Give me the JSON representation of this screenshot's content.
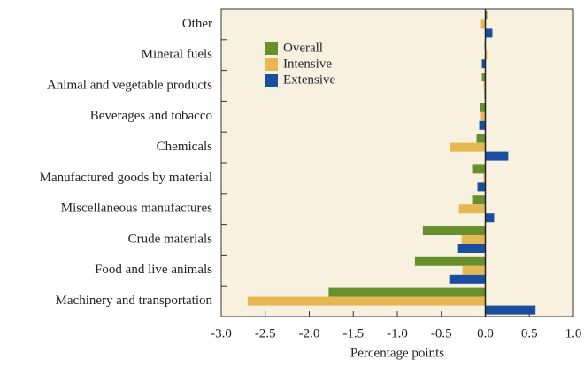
{
  "chart_data": {
    "type": "hbar",
    "categories": [
      "Other",
      "Mineral fuels",
      "Animal and vegetable products",
      "Beverages and tobacco",
      "Chemicals",
      "Manufactured goods by material",
      "Miscellaneous manufactures",
      "Crude materials",
      "Food and live animals",
      "Machinery and transportation"
    ],
    "series": [
      {
        "name": "Overall",
        "color": "#66902c",
        "values": [
          0.02,
          -0.01,
          -0.04,
          -0.06,
          -0.1,
          -0.15,
          -0.15,
          -0.71,
          -0.8,
          -1.78
        ]
      },
      {
        "name": "Intensive",
        "color": "#e6b851",
        "values": [
          -0.05,
          0.02,
          -0.02,
          -0.05,
          -0.4,
          -0.02,
          -0.3,
          -0.27,
          -0.26,
          -2.7
        ]
      },
      {
        "name": "Extensive",
        "color": "#1a4f9f",
        "values": [
          0.08,
          -0.04,
          -0.01,
          -0.07,
          0.26,
          -0.09,
          0.1,
          -0.31,
          -0.41,
          0.57
        ]
      }
    ],
    "xlabel": "Percentage points",
    "xlim": [
      -3,
      1
    ],
    "xticks": [
      {
        "value": -3,
        "label": "-3.0"
      },
      -2.5,
      {
        "value": -2,
        "label": "-2.0"
      },
      -1.5,
      {
        "value": -1,
        "label": "-1.0"
      },
      -0.5,
      {
        "value": 0,
        "label": "0.0"
      },
      0.5,
      {
        "value": 1,
        "label": "1.0"
      }
    ],
    "legend": "upper left"
  }
}
